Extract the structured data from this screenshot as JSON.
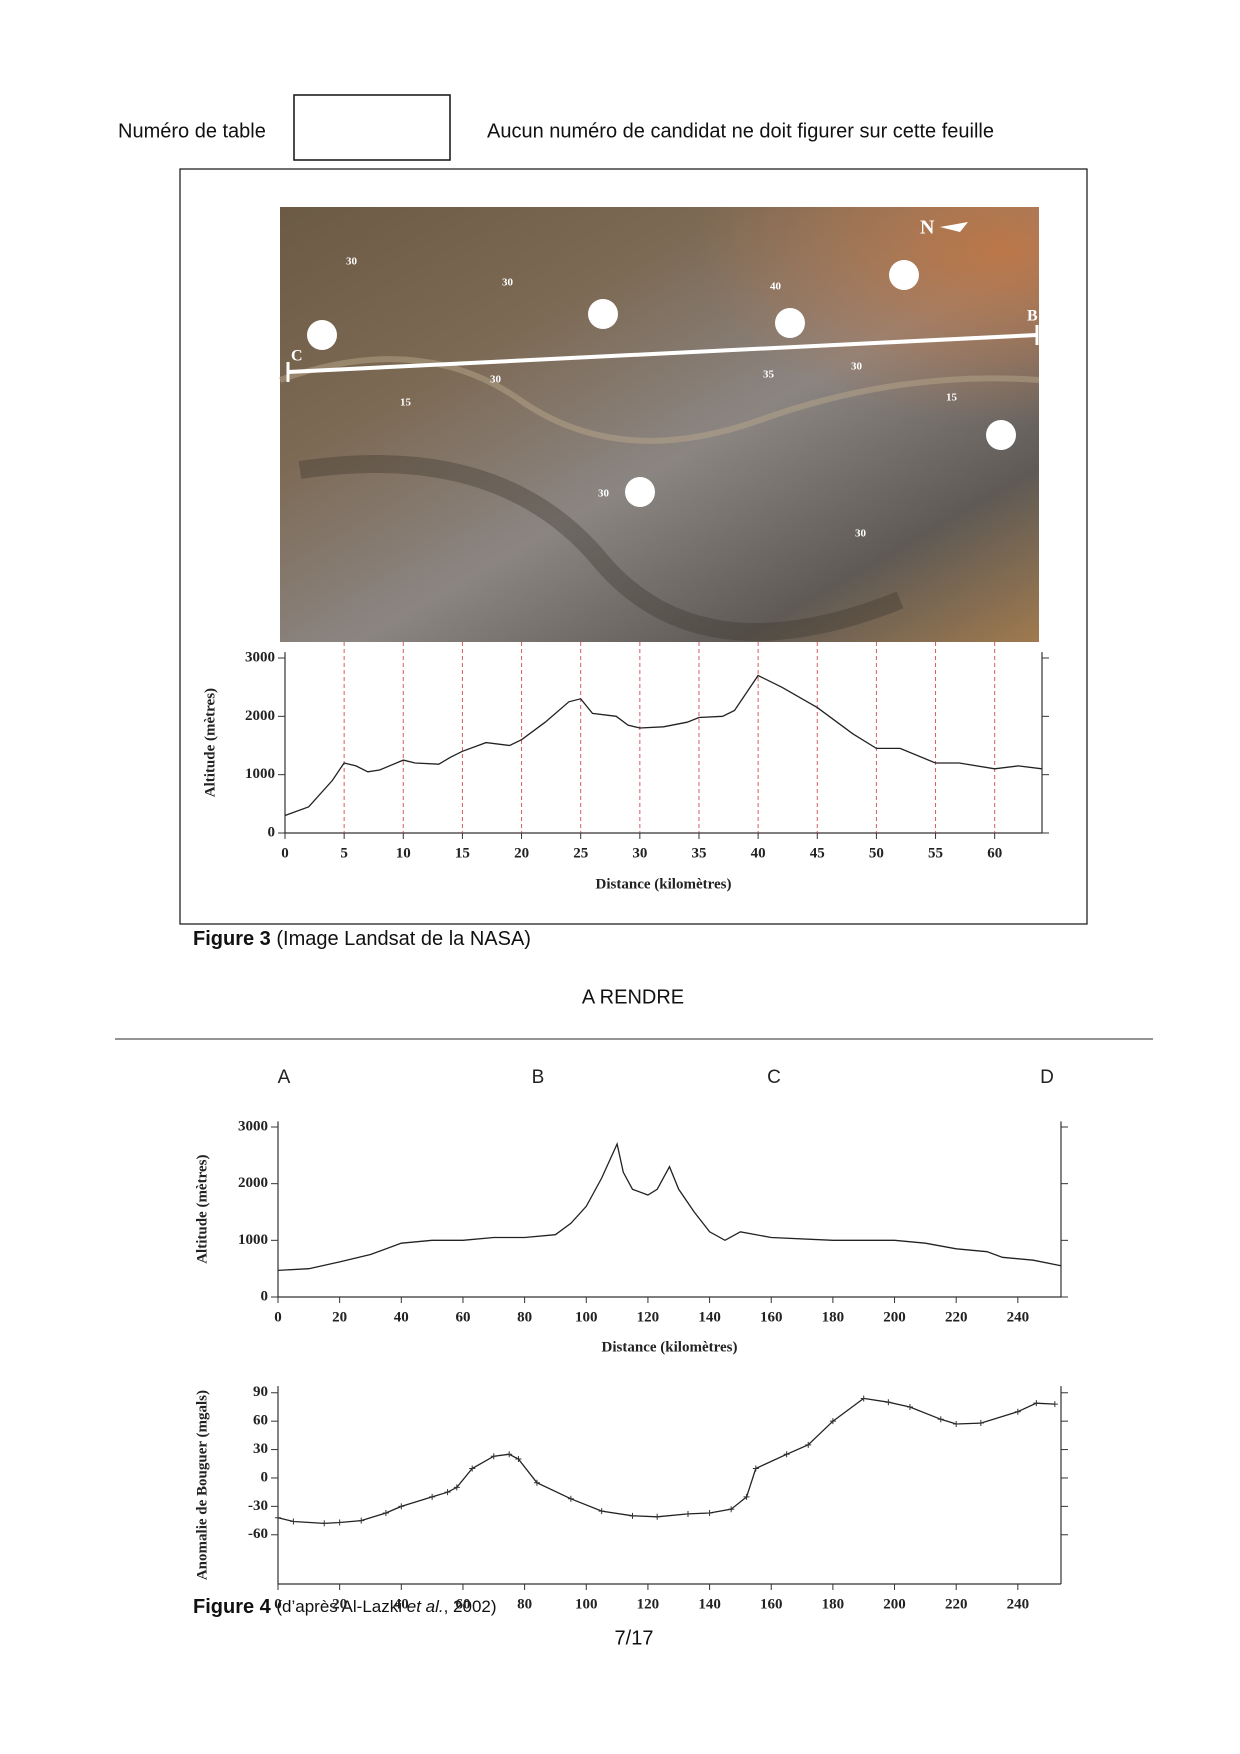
{
  "header": {
    "table_label": "Numéro de table",
    "notice": "Aucun numéro de candidat ne doit figurer sur cette feuille"
  },
  "figure3": {
    "map_labels": [
      "N",
      "B",
      "C",
      "30",
      "30",
      "30",
      "40",
      "35",
      "30",
      "15",
      "15",
      "30",
      "30"
    ],
    "caption_bold": "Figure 3",
    "caption": "(Image Landsat de la NASA)"
  },
  "section_title": "A RENDRE",
  "figure4": {
    "profile_letters": [
      "A",
      "B",
      "C",
      "D"
    ],
    "caption_bold": "Figure 4",
    "caption_pre": "(d’après Al-Lazki ",
    "caption_italic": "et al.",
    "caption_post": ", 2002)"
  },
  "page_number": "7/17",
  "chart_data": [
    {
      "type": "line",
      "xlabel": "Distance (kilomètres)",
      "ylabel": "Altitude (mètres)",
      "color": "#222",
      "x": [
        0,
        2,
        4,
        5,
        6,
        7,
        8,
        10,
        11,
        13,
        14,
        15,
        17,
        19,
        20,
        22,
        24,
        25,
        26,
        28,
        29,
        30,
        32,
        34,
        35,
        37,
        38,
        40,
        42,
        45,
        48,
        50,
        52,
        55,
        57,
        60,
        62,
        64
      ],
      "values": [
        300,
        450,
        900,
        1200,
        1150,
        1050,
        1080,
        1250,
        1200,
        1180,
        1300,
        1400,
        1550,
        1500,
        1600,
        1900,
        2250,
        2300,
        2050,
        2000,
        1850,
        1800,
        1820,
        1900,
        1980,
        2000,
        2100,
        2700,
        2500,
        2150,
        1700,
        1450,
        1450,
        1200,
        1200,
        1100,
        1150,
        1100
      ],
      "xlim": [
        0,
        64
      ],
      "xticks": [
        0,
        5,
        10,
        15,
        20,
        25,
        30,
        35,
        40,
        45,
        50,
        55,
        60
      ],
      "ylim": [
        0,
        3100
      ],
      "yticks": [
        0,
        1000,
        2000,
        3000
      ],
      "guide_lines": true,
      "guide_color": "#d0303a"
    },
    {
      "type": "line",
      "xlabel": "Distance (kilomètres)",
      "ylabel": "Altitude (mètres)",
      "color": "#222",
      "x": [
        0,
        10,
        20,
        30,
        40,
        50,
        60,
        70,
        80,
        90,
        95,
        100,
        105,
        110,
        112,
        115,
        120,
        123,
        127,
        130,
        135,
        140,
        145,
        150,
        160,
        180,
        200,
        210,
        220,
        230,
        235,
        245,
        254
      ],
      "values": [
        470,
        500,
        620,
        750,
        950,
        1000,
        1000,
        1050,
        1050,
        1100,
        1300,
        1600,
        2100,
        2700,
        2200,
        1900,
        1800,
        1900,
        2300,
        1900,
        1500,
        1150,
        1000,
        1150,
        1050,
        1000,
        1000,
        950,
        850,
        800,
        700,
        650,
        550
      ],
      "xlim": [
        0,
        254
      ],
      "xticks": [
        0,
        20,
        40,
        60,
        80,
        100,
        120,
        140,
        160,
        180,
        200,
        220,
        240
      ],
      "ylim": [
        0,
        3100
      ],
      "yticks": [
        0,
        1000,
        2000,
        3000
      ]
    },
    {
      "type": "line",
      "ylabel": "Anomalie de Bouguer (mgals)",
      "color": "#222",
      "markers": true,
      "x": [
        0,
        5,
        15,
        20,
        27,
        35,
        40,
        50,
        55,
        58,
        63,
        70,
        75,
        78,
        84,
        95,
        105,
        115,
        123,
        133,
        140,
        147,
        152,
        155,
        165,
        172,
        180,
        190,
        198,
        205,
        215,
        220,
        228,
        240,
        246,
        252
      ],
      "values": [
        -42,
        -46,
        -48,
        -47,
        -45,
        -37,
        -30,
        -20,
        -15,
        -10,
        10,
        23,
        25,
        20,
        -5,
        -22,
        -35,
        -40,
        -41,
        -38,
        -37,
        -33,
        -20,
        10,
        25,
        35,
        60,
        84,
        80,
        75,
        62,
        57,
        58,
        70,
        79,
        78
      ],
      "xlim": [
        0,
        254
      ],
      "xticks": [
        0,
        20,
        40,
        60,
        80,
        100,
        120,
        140,
        160,
        180,
        200,
        220,
        240
      ],
      "ylim": [
        -112,
        97
      ],
      "yticks": [
        -60,
        -30,
        0,
        30,
        60,
        90
      ]
    }
  ]
}
